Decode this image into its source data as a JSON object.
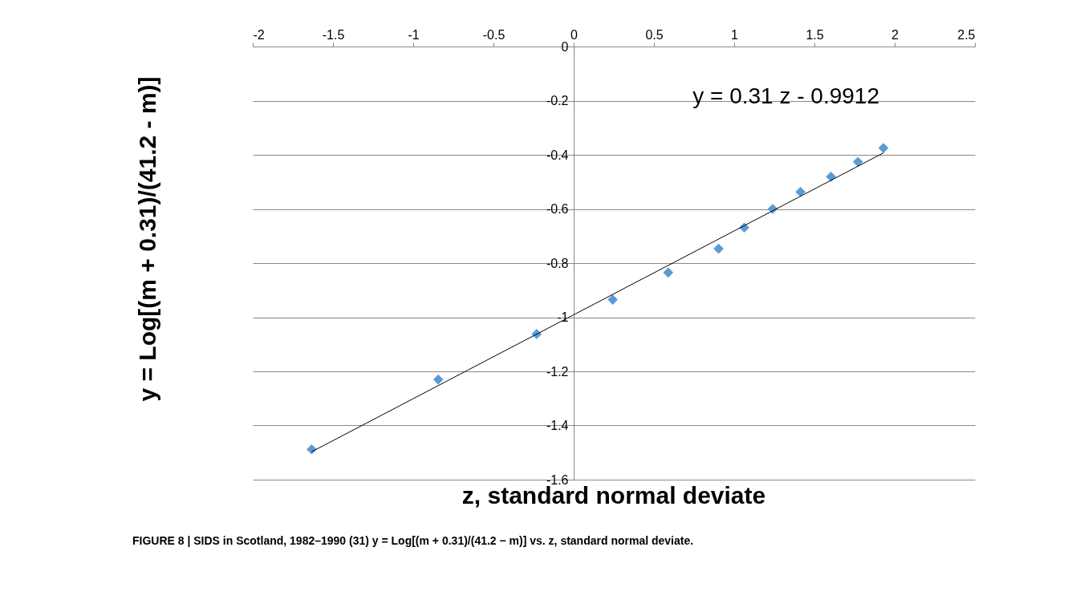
{
  "chart_data": {
    "type": "scatter",
    "xlabel": "z, standard normal deviate",
    "ylabel": "y = Log[(m + 0.31)/(41.2 - m)]",
    "annotations": [
      "FIGURE 8 | SIDS in Scotland, 1982–1990 (31) y = Log[(m + 0.31)/(41.2 − m)] vs. z, standard normal deviate."
    ],
    "series": [
      {
        "color": "#5b9bd5",
        "marker": "diamond",
        "x": [
          -1.633,
          -0.844,
          -0.231,
          0.243,
          0.589,
          0.903,
          1.063,
          1.24,
          1.413,
          1.603,
          1.771,
          1.93
        ],
        "values": [
          -1.488,
          -1.23,
          -1.062,
          -0.935,
          -0.835,
          -0.747,
          -0.669,
          -0.6,
          -0.537,
          -0.481,
          -0.426,
          -0.375
        ]
      },
      {
        "type": "line",
        "name": "y = 0.31 z - 0.9912",
        "color": "#000000",
        "marker": "none",
        "x": [
          -1.633,
          1.93
        ],
        "values": [
          -1.497,
          -0.393
        ]
      }
    ],
    "xlim": [
      -2,
      2.5
    ],
    "xticks": [
      -2,
      -1.5,
      -1,
      -0.5,
      0,
      0.5,
      1,
      1.5,
      2,
      2.5
    ],
    "ylim": [
      -1.6,
      0
    ],
    "yticks": [
      -1.6,
      -1.4,
      -1.2,
      -1,
      -0.8,
      -0.6,
      -0.4,
      -0.2,
      0
    ],
    "grid": "y",
    "legend": false
  }
}
